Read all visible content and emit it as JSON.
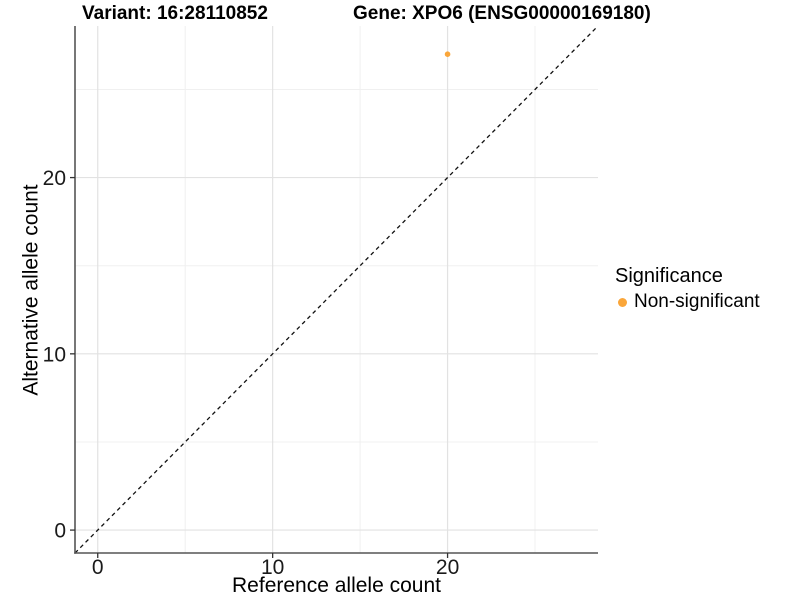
{
  "chart_data": {
    "type": "scatter",
    "titles": {
      "variant": "Variant: 16:28110852",
      "gene": "Gene: XPO6 (ENSG00000169180)"
    },
    "axes": {
      "x": {
        "title": "Reference allele count",
        "lim": [
          -1.3,
          28.6
        ],
        "major_ticks": [
          0,
          10,
          20
        ],
        "minor_ticks": [
          5,
          15,
          25
        ],
        "tick_labels": [
          "0",
          "10",
          "20"
        ]
      },
      "y": {
        "title": "Alternative allele count",
        "lim": [
          -1.3,
          28.6
        ],
        "major_ticks": [
          0,
          10,
          20
        ],
        "minor_ticks": [
          5,
          15,
          25
        ],
        "tick_labels": [
          "0",
          "10",
          "20"
        ]
      }
    },
    "grid": {
      "major": true,
      "minor": true
    },
    "identity_line": {
      "style": "dashed",
      "slope": 1,
      "intercept": 0
    },
    "series": [
      {
        "name": "Non-significant",
        "color": "#FAA63A",
        "points": [
          {
            "x": 20,
            "y": 27
          }
        ]
      }
    ],
    "legend": {
      "title": "Significance",
      "position": "right",
      "items": [
        {
          "label": "Non-significant",
          "color": "#FAA63A",
          "marker": "circle"
        }
      ]
    },
    "colors": {
      "background": "#FFFFFF",
      "grid_major": "#E2E2E2",
      "grid_minor": "#F0F0F0",
      "axis_line": "#555555",
      "tick_mark": "#333333",
      "tick_text": "#1A1A1A",
      "identity_line": "#111111",
      "point": "#FAA63A"
    }
  }
}
